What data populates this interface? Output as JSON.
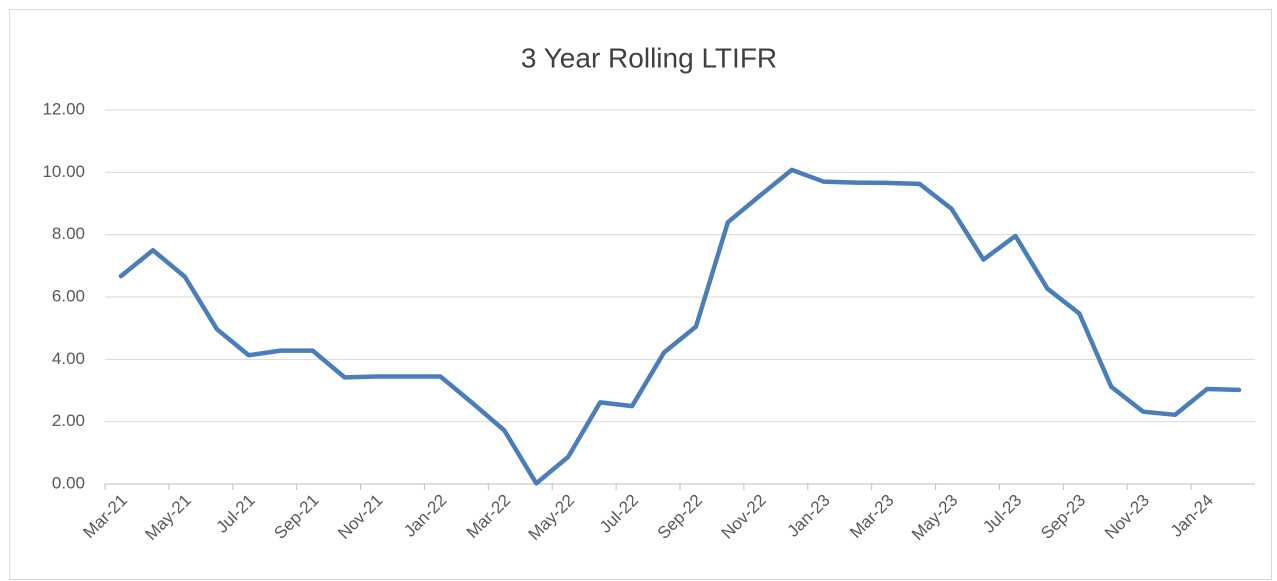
{
  "chart_data": {
    "type": "line",
    "title": "3 Year Rolling LTIFR",
    "categories": [
      "Mar-21",
      null,
      "May-21",
      null,
      "Jul-21",
      null,
      "Sep-21",
      null,
      "Nov-21",
      null,
      "Jan-22",
      null,
      "Mar-22",
      null,
      "May-22",
      null,
      "Jul-22",
      null,
      "Sep-22",
      null,
      "Nov-22",
      null,
      "Jan-23",
      null,
      "Mar-23",
      null,
      "May-23",
      null,
      "Jul-23",
      null,
      "Sep-23",
      null,
      "Nov-23",
      null,
      "Jan-24",
      null
    ],
    "series": [
      {
        "name": "3 Year Rolling LTIFR",
        "color": "#4a7ebb",
        "values": [
          6.67,
          7.5,
          6.65,
          4.97,
          4.13,
          4.28,
          4.28,
          3.42,
          3.45,
          3.45,
          3.45,
          2.6,
          1.72,
          0.02,
          0.87,
          2.62,
          2.5,
          4.22,
          5.05,
          8.4,
          9.25,
          10.08,
          9.7,
          9.67,
          9.66,
          9.63,
          8.83,
          7.2,
          7.96,
          6.27,
          5.47,
          3.12,
          2.32,
          2.22,
          3.05,
          3.02
        ]
      }
    ],
    "ylim": [
      0,
      12
    ],
    "yticks": [
      {
        "value": 0,
        "label": "0.00"
      },
      {
        "value": 2,
        "label": "2.00"
      },
      {
        "value": 4,
        "label": "4.00"
      },
      {
        "value": 6,
        "label": "6.00"
      },
      {
        "value": 8,
        "label": "8.00"
      },
      {
        "value": 10,
        "label": "10.00"
      },
      {
        "value": 12,
        "label": "12.00"
      }
    ],
    "grid": true
  }
}
